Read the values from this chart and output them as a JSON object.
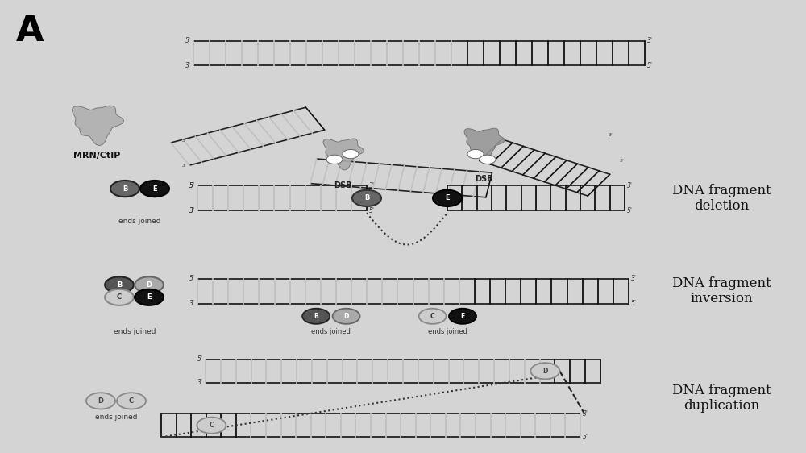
{
  "bg_color": "#d4d4d4",
  "title_letter": "A",
  "mrn_label": "MRN/CtIP",
  "dsb_label": "DSB",
  "labels": {
    "deletion": "DNA fragment\ndeletion",
    "inversion": "DNA fragment\ninversion",
    "duplication": "DNA fragment\nduplication"
  },
  "ends_joined": "ends joined",
  "light_rung": "#c0c0c0",
  "dark_rung": "#111111",
  "strand_line": "#222222",
  "text_color": "#111111",
  "label_fontsize": 12,
  "small_fontsize": 5.5
}
